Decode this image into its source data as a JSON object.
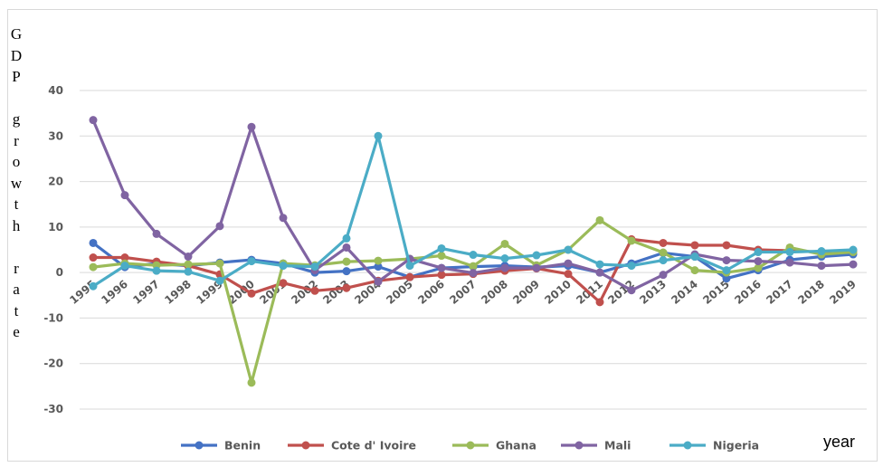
{
  "chart_data": {
    "type": "line",
    "title": "",
    "ylabel": "GDP growth rate",
    "xlabel": "year",
    "ylim": [
      -30,
      40
    ],
    "yticks": [
      -30,
      -20,
      -10,
      0,
      10,
      20,
      30,
      40
    ],
    "grid": true,
    "legend_position": "bottom",
    "x": [
      "1995",
      "1996",
      "1997",
      "1998",
      "1999",
      "2000",
      "2001",
      "2002",
      "2003",
      "2004",
      "2005",
      "2006",
      "2007",
      "2008",
      "2009",
      "2010",
      "2011",
      "2012",
      "2013",
      "2014",
      "2015",
      "2016",
      "2017",
      "2018",
      "2019"
    ],
    "series": [
      {
        "name": "Benin",
        "color": "#4472c4",
        "values": [
          6.5,
          1.2,
          2.0,
          1.5,
          2.2,
          2.8,
          2.0,
          0.0,
          0.3,
          1.3,
          -1.0,
          1.0,
          1.3,
          1.5,
          1.2,
          1.5,
          0.0,
          2.0,
          4.3,
          3.5,
          -1.3,
          0.5,
          2.8,
          3.5,
          4.0
        ]
      },
      {
        "name": "Cote d' Ivoire",
        "color": "#c0504d",
        "values": [
          3.3,
          3.3,
          2.4,
          1.5,
          -0.4,
          -4.6,
          -2.3,
          -4.0,
          -3.4,
          -1.8,
          -1.0,
          -0.5,
          -0.3,
          0.4,
          0.9,
          -0.3,
          -6.5,
          7.3,
          6.5,
          6.0,
          6.0,
          5.0,
          4.8,
          4.5,
          4.8
        ]
      },
      {
        "name": "Ghana",
        "color": "#9bbb59",
        "values": [
          1.2,
          2.0,
          1.6,
          1.8,
          2.0,
          -24.2,
          2.0,
          1.6,
          2.4,
          2.6,
          3.0,
          3.7,
          1.4,
          6.3,
          1.6,
          5.0,
          11.5,
          7.0,
          4.4,
          0.5,
          0.0,
          1.0,
          5.5,
          4.0,
          4.5
        ]
      },
      {
        "name": "Mali",
        "color": "#8064a2",
        "values": [
          33.5,
          17.0,
          8.5,
          3.5,
          10.2,
          32.0,
          12.0,
          0.5,
          5.5,
          -2.0,
          3.0,
          1.0,
          -0.1,
          1.0,
          1.0,
          2.0,
          0.0,
          -3.9,
          -0.5,
          4.0,
          2.7,
          2.5,
          2.2,
          1.5,
          1.8
        ]
      },
      {
        "name": "Nigeria",
        "color": "#4bacc6",
        "values": [
          -3.0,
          1.5,
          0.4,
          0.2,
          -1.8,
          2.5,
          1.5,
          1.3,
          7.5,
          30.0,
          1.5,
          5.3,
          3.9,
          3.1,
          3.8,
          5.0,
          1.8,
          1.5,
          2.7,
          3.5,
          0.5,
          4.5,
          4.5,
          4.7,
          5.0
        ]
      }
    ]
  }
}
